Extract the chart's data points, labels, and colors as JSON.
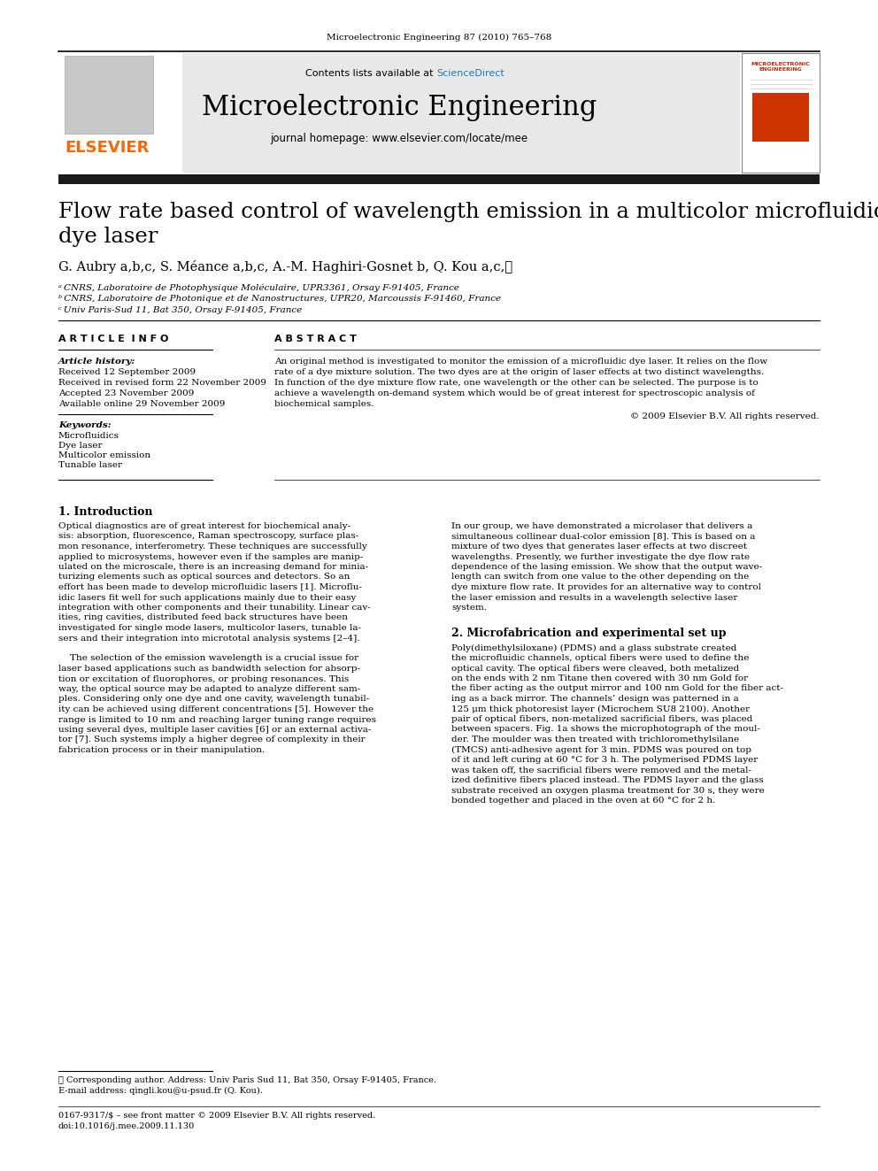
{
  "journal_ref": "Microelectronic Engineering 87 (2010) 765–768",
  "contents_line": "Contents lists available at ",
  "sciencedirect": "ScienceDirect",
  "journal_name": "Microelectronic Engineering",
  "journal_homepage": "journal homepage: www.elsevier.com/locate/mee",
  "paper_title_line1": "Flow rate based control of wavelength emission in a multicolor microfluidic",
  "paper_title_line2": "dye laser",
  "authors": "G. Aubry a,b,c, S. Méance a,b,c, A.-M. Haghiri-Gosnet b, Q. Kou a,c,⋆",
  "affil_a": "ᵃ CNRS, Laboratoire de Photophysique Moléculaire, UPR3361, Orsay F-91405, France",
  "affil_b": "ᵇ CNRS, Laboratoire de Photonique et de Nanostructures, UPR20, Marcoussis F-91460, France",
  "affil_c": "ᶜ Univ Paris-Sud 11, Bat 350, Orsay F-91405, France",
  "article_info_header": "A R T I C L E  I N F O",
  "abstract_header": "A B S T R A C T",
  "article_history_label": "Article history:",
  "received1": "Received 12 September 2009",
  "received2": "Received in revised form 22 November 2009",
  "accepted": "Accepted 23 November 2009",
  "available": "Available online 29 November 2009",
  "keywords_label": "Keywords:",
  "keyword1": "Microfluidics",
  "keyword2": "Dye laser",
  "keyword3": "Multicolor emission",
  "keyword4": "Tunable laser",
  "copyright": "© 2009 Elsevier B.V. All rights reserved.",
  "section1_title": "1. Introduction",
  "section2_title": "2. Microfabrication and experimental set up",
  "footnote_star": "⋆ Corresponding author. Address: Univ Paris Sud 11, Bat 350, Orsay F-91405, France.",
  "footnote_email": "E-mail address: qingli.kou@u-psud.fr (Q. Kou).",
  "footnote_issn": "0167-9317/$ – see front matter © 2009 Elsevier B.V. All rights reserved.",
  "footnote_doi": "doi:10.1016/j.mee.2009.11.130",
  "elsevier_color": "#FF6600",
  "sciencedirect_color": "#1a7abf",
  "header_bg": "#e8e8e8",
  "thick_bar_color": "#1a1a1a",
  "intro_col1": [
    "Optical diagnostics are of great interest for biochemical analy-",
    "sis: absorption, fluorescence, Raman spectroscopy, surface plas-",
    "mon resonance, interferometry. These techniques are successfully",
    "applied to microsystems, however even if the samples are manip-",
    "ulated on the microscale, there is an increasing demand for minia-",
    "turizing elements such as optical sources and detectors. So an",
    "effort has been made to develop microfluidic lasers [1]. Microflu-",
    "idic lasers fit well for such applications mainly due to their easy",
    "integration with other components and their tunability. Linear cav-",
    "ities, ring cavities, distributed feed back structures have been",
    "investigated for single mode lasers, multicolor lasers, tunable la-",
    "sers and their integration into micrototal analysis systems [2–4].",
    "",
    "    The selection of the emission wavelength is a crucial issue for",
    "laser based applications such as bandwidth selection for absorp-",
    "tion or excitation of fluorophores, or probing resonances. This",
    "way, the optical source may be adapted to analyze different sam-",
    "ples. Considering only one dye and one cavity, wavelength tunabil-",
    "ity can be achieved using different concentrations [5]. However the",
    "range is limited to 10 nm and reaching larger tuning range requires",
    "using several dyes, multiple laser cavities [6] or an external activa-",
    "tor [7]. Such systems imply a higher degree of complexity in their",
    "fabrication process or in their manipulation."
  ],
  "intro_col2": [
    "In our group, we have demonstrated a microlaser that delivers a",
    "simultaneous collinear dual-color emission [8]. This is based on a",
    "mixture of two dyes that generates laser effects at two discreet",
    "wavelengths. Presently, we further investigate the dye flow rate",
    "dependence of the lasing emission. We show that the output wave-",
    "length can switch from one value to the other depending on the",
    "dye mixture flow rate. It provides for an alternative way to control",
    "the laser emission and results in a wavelength selective laser",
    "system."
  ],
  "sec2_col2": [
    "Poly(dimethylsiloxane) (PDMS) and a glass substrate created",
    "the microfluidic channels, optical fibers were used to define the",
    "optical cavity. The optical fibers were cleaved, both metalized",
    "on the ends with 2 nm Titane then covered with 30 nm Gold for",
    "the fiber acting as the output mirror and 100 nm Gold for the fiber act-",
    "ing as a back mirror. The channels’ design was patterned in a",
    "125 μm thick photoresist layer (Microchem SU8 2100). Another",
    "pair of optical fibers, non-metalized sacrificial fibers, was placed",
    "between spacers. Fig. 1a shows the microphotograph of the moul-",
    "der. The moulder was then treated with trichloromethylsilane",
    "(TMCS) anti-adhesive agent for 3 min. PDMS was poured on top",
    "of it and left curing at 60 °C for 3 h. The polymerised PDMS layer",
    "was taken off, the sacrificial fibers were removed and the metal-",
    "ized definitive fibers placed instead. The PDMS layer and the glass",
    "substrate received an oxygen plasma treatment for 30 s, they were",
    "bonded together and placed in the oven at 60 °C for 2 h."
  ],
  "abstract_lines": [
    "An original method is investigated to monitor the emission of a microfluidic dye laser. It relies on the flow",
    "rate of a dye mixture solution. The two dyes are at the origin of laser effects at two distinct wavelengths.",
    "In function of the dye mixture flow rate, one wavelength or the other can be selected. The purpose is to",
    "achieve a wavelength on-demand system which would be of great interest for spectroscopic analysis of",
    "biochemical samples."
  ]
}
